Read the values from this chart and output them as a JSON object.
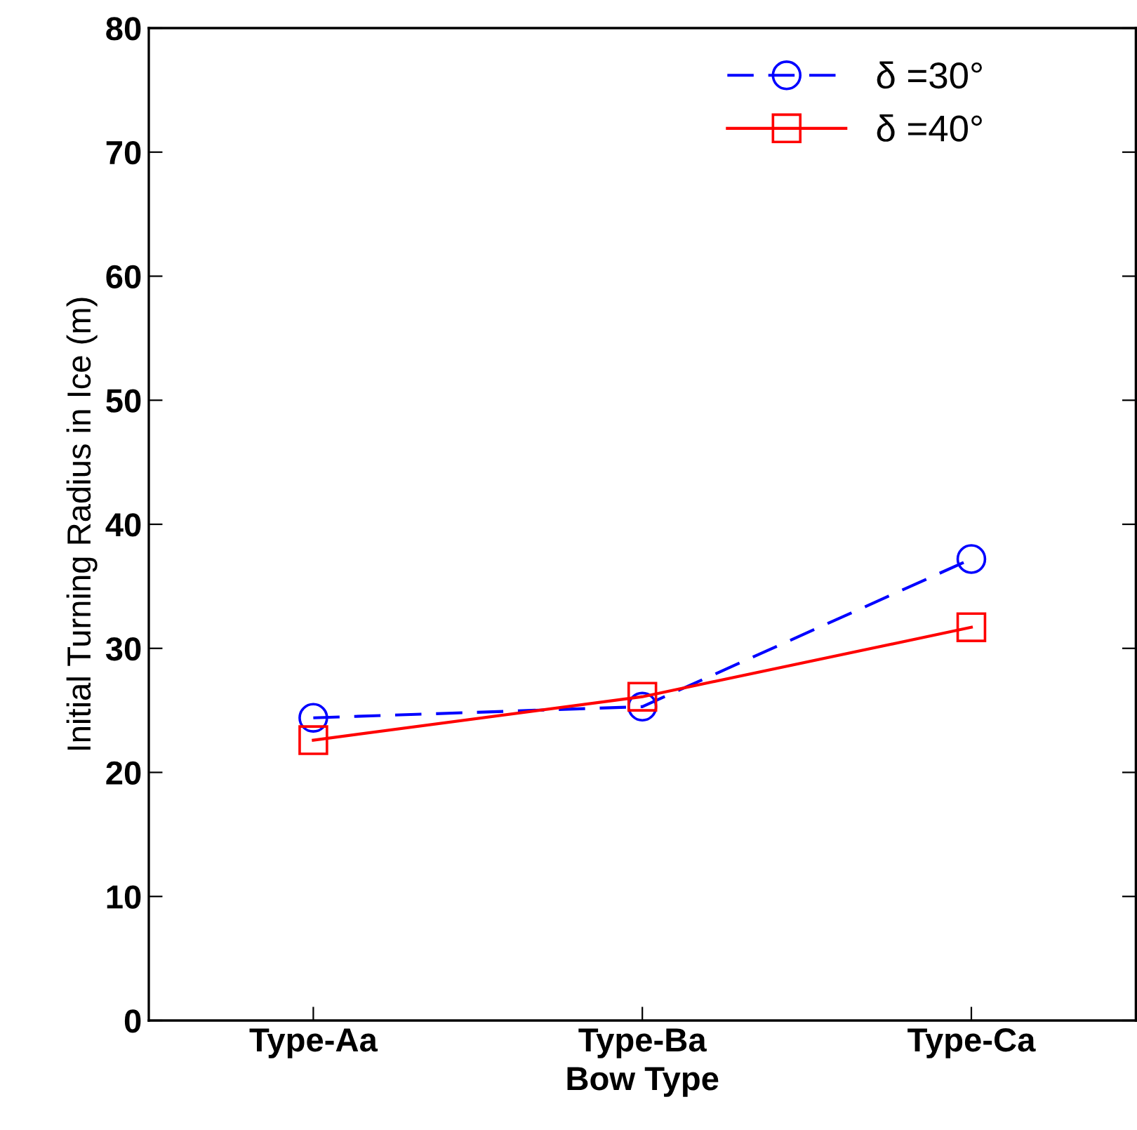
{
  "chart_data": {
    "type": "line",
    "xlabel": "Bow Type",
    "ylabel": "Initial Turning Radius in Ice (m)",
    "categories": [
      "Type-Aa",
      "Type-Ba",
      "Type-Ca"
    ],
    "series": [
      {
        "name": "δ =30°",
        "color": "#0000ff",
        "values": [
          24.4,
          25.3,
          37.2
        ],
        "marker": "circle",
        "line_style": "dashed"
      },
      {
        "name": "δ =40°",
        "color": "#ff0000",
        "values": [
          22.6,
          26.1,
          31.7
        ],
        "marker": "square",
        "line_style": "solid"
      }
    ],
    "ylim": [
      0,
      80
    ],
    "yticks": [
      0,
      10,
      20,
      30,
      40,
      50,
      60,
      70,
      80
    ],
    "grid": false,
    "legend": "top right"
  }
}
